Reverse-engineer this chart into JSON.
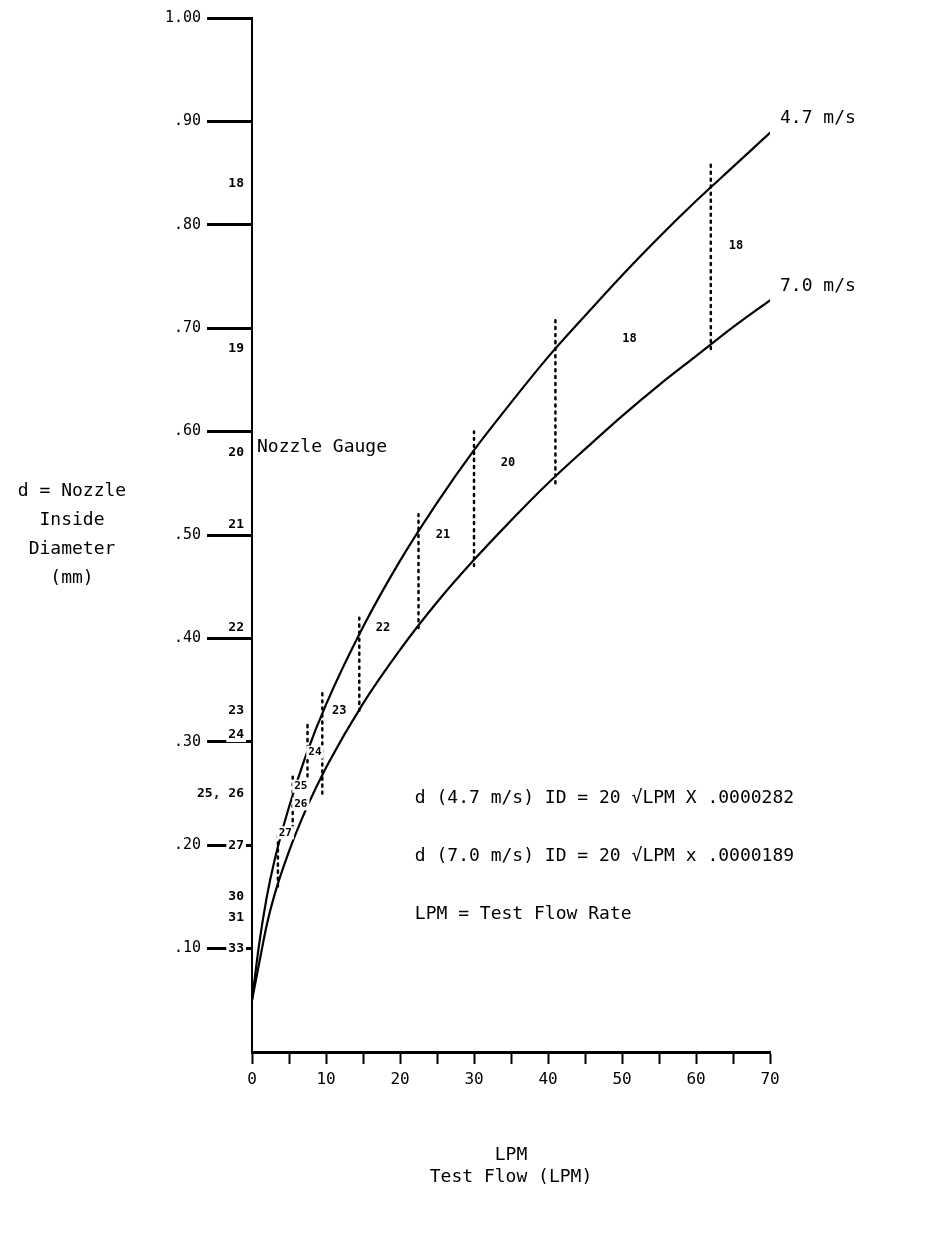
{
  "chart_data": {
    "type": "line",
    "xlabel": "LPM\nTest Flow (LPM)",
    "ylabel": "d = Nozzle\nInside\nDiameter\n(mm)",
    "xlim": [
      0,
      70
    ],
    "xticks": [
      0,
      {
        "value": 5,
        "label": null
      },
      10,
      {
        "value": 15,
        "label": null
      },
      20,
      {
        "value": 25,
        "label": null
      },
      30,
      {
        "value": 35,
        "label": null
      },
      40,
      {
        "value": 45,
        "label": null
      },
      50,
      {
        "value": 55,
        "label": null
      },
      60,
      {
        "value": 65,
        "label": null
      },
      70
    ],
    "ylim": [
      0,
      1.0
    ],
    "yticks": [
      {
        "value": 0.1,
        "label": ".10"
      },
      {
        "value": 0.2,
        "label": ".20"
      },
      {
        "value": 0.3,
        "label": ".30"
      },
      {
        "value": 0.4,
        "label": ".40"
      },
      {
        "value": 0.5,
        "label": ".50"
      },
      {
        "value": 0.6,
        "label": ".60"
      },
      {
        "value": 0.7,
        "label": ".70"
      },
      {
        "value": 0.8,
        "label": ".80"
      },
      {
        "value": 0.9,
        "label": ".90"
      },
      {
        "value": 1.0,
        "label": "1.00"
      }
    ],
    "grid": false,
    "legend": false,
    "marker": "none",
    "series": [
      {
        "name": "4.7 m/s",
        "color": "#000000",
        "line_style": "solid",
        "x": [
          0,
          1,
          2,
          3,
          5,
          7.5,
          10,
          15,
          20,
          25,
          30,
          35,
          40,
          45,
          50,
          55,
          60,
          65,
          70
        ],
        "values": [
          0.05,
          0.106,
          0.15,
          0.184,
          0.237,
          0.291,
          0.336,
          0.411,
          0.475,
          0.531,
          0.582,
          0.628,
          0.672,
          0.712,
          0.751,
          0.788,
          0.823,
          0.856,
          0.889
        ]
      },
      {
        "name": "7.0 m/s",
        "color": "#000000",
        "line_style": "solid",
        "x": [
          0,
          1,
          2,
          3,
          5,
          7.5,
          10,
          15,
          20,
          25,
          30,
          35,
          40,
          45,
          50,
          55,
          60,
          65,
          70
        ],
        "values": [
          0.05,
          0.087,
          0.123,
          0.151,
          0.194,
          0.238,
          0.275,
          0.337,
          0.389,
          0.435,
          0.476,
          0.514,
          0.55,
          0.583,
          0.615,
          0.645,
          0.673,
          0.701,
          0.727
        ]
      },
      {
        "color": "#000000",
        "line_style": "dotted",
        "x": [
          62,
          62
        ],
        "values": [
          0.68,
          0.86
        ]
      },
      {
        "color": "#000000",
        "line_style": "dotted",
        "x": [
          41,
          41
        ],
        "values": [
          0.55,
          0.71
        ]
      },
      {
        "color": "#000000",
        "line_style": "dotted",
        "x": [
          30,
          30
        ],
        "values": [
          0.47,
          0.6
        ]
      },
      {
        "color": "#000000",
        "line_style": "dotted",
        "x": [
          22.5,
          22.5
        ],
        "values": [
          0.41,
          0.52
        ]
      },
      {
        "color": "#000000",
        "line_style": "dotted",
        "x": [
          14.5,
          14.5
        ],
        "values": [
          0.33,
          0.42
        ]
      },
      {
        "color": "#000000",
        "line_style": "dotted",
        "x": [
          9.5,
          9.5
        ],
        "values": [
          0.25,
          0.35
        ]
      },
      {
        "color": "#000000",
        "line_style": "dotted",
        "x": [
          7.5,
          7.5
        ],
        "values": [
          0.26,
          0.32
        ]
      },
      {
        "color": "#000000",
        "line_style": "dotted",
        "x": [
          5.5,
          5.5
        ],
        "values": [
          0.21,
          0.27
        ]
      },
      {
        "color": "#000000",
        "line_style": "dotted",
        "x": [
          3.5,
          3.5
        ],
        "values": [
          0.16,
          0.21
        ]
      }
    ],
    "annotations": [
      "Nozzle Gauge",
      "d (4.7 m/s) ID = 20 √LPM X .0000282",
      "d (7.0 m/s) ID = 20 √LPM x .0000189",
      "LPM = Test Flow Rate",
      "18",
      "19",
      "20",
      "21",
      "22",
      "23",
      "24",
      "25, 26",
      "27",
      "30",
      "31",
      "33",
      "18",
      "18",
      "20",
      "21",
      "22",
      "23",
      "24",
      "25",
      "26",
      "27"
    ]
  }
}
